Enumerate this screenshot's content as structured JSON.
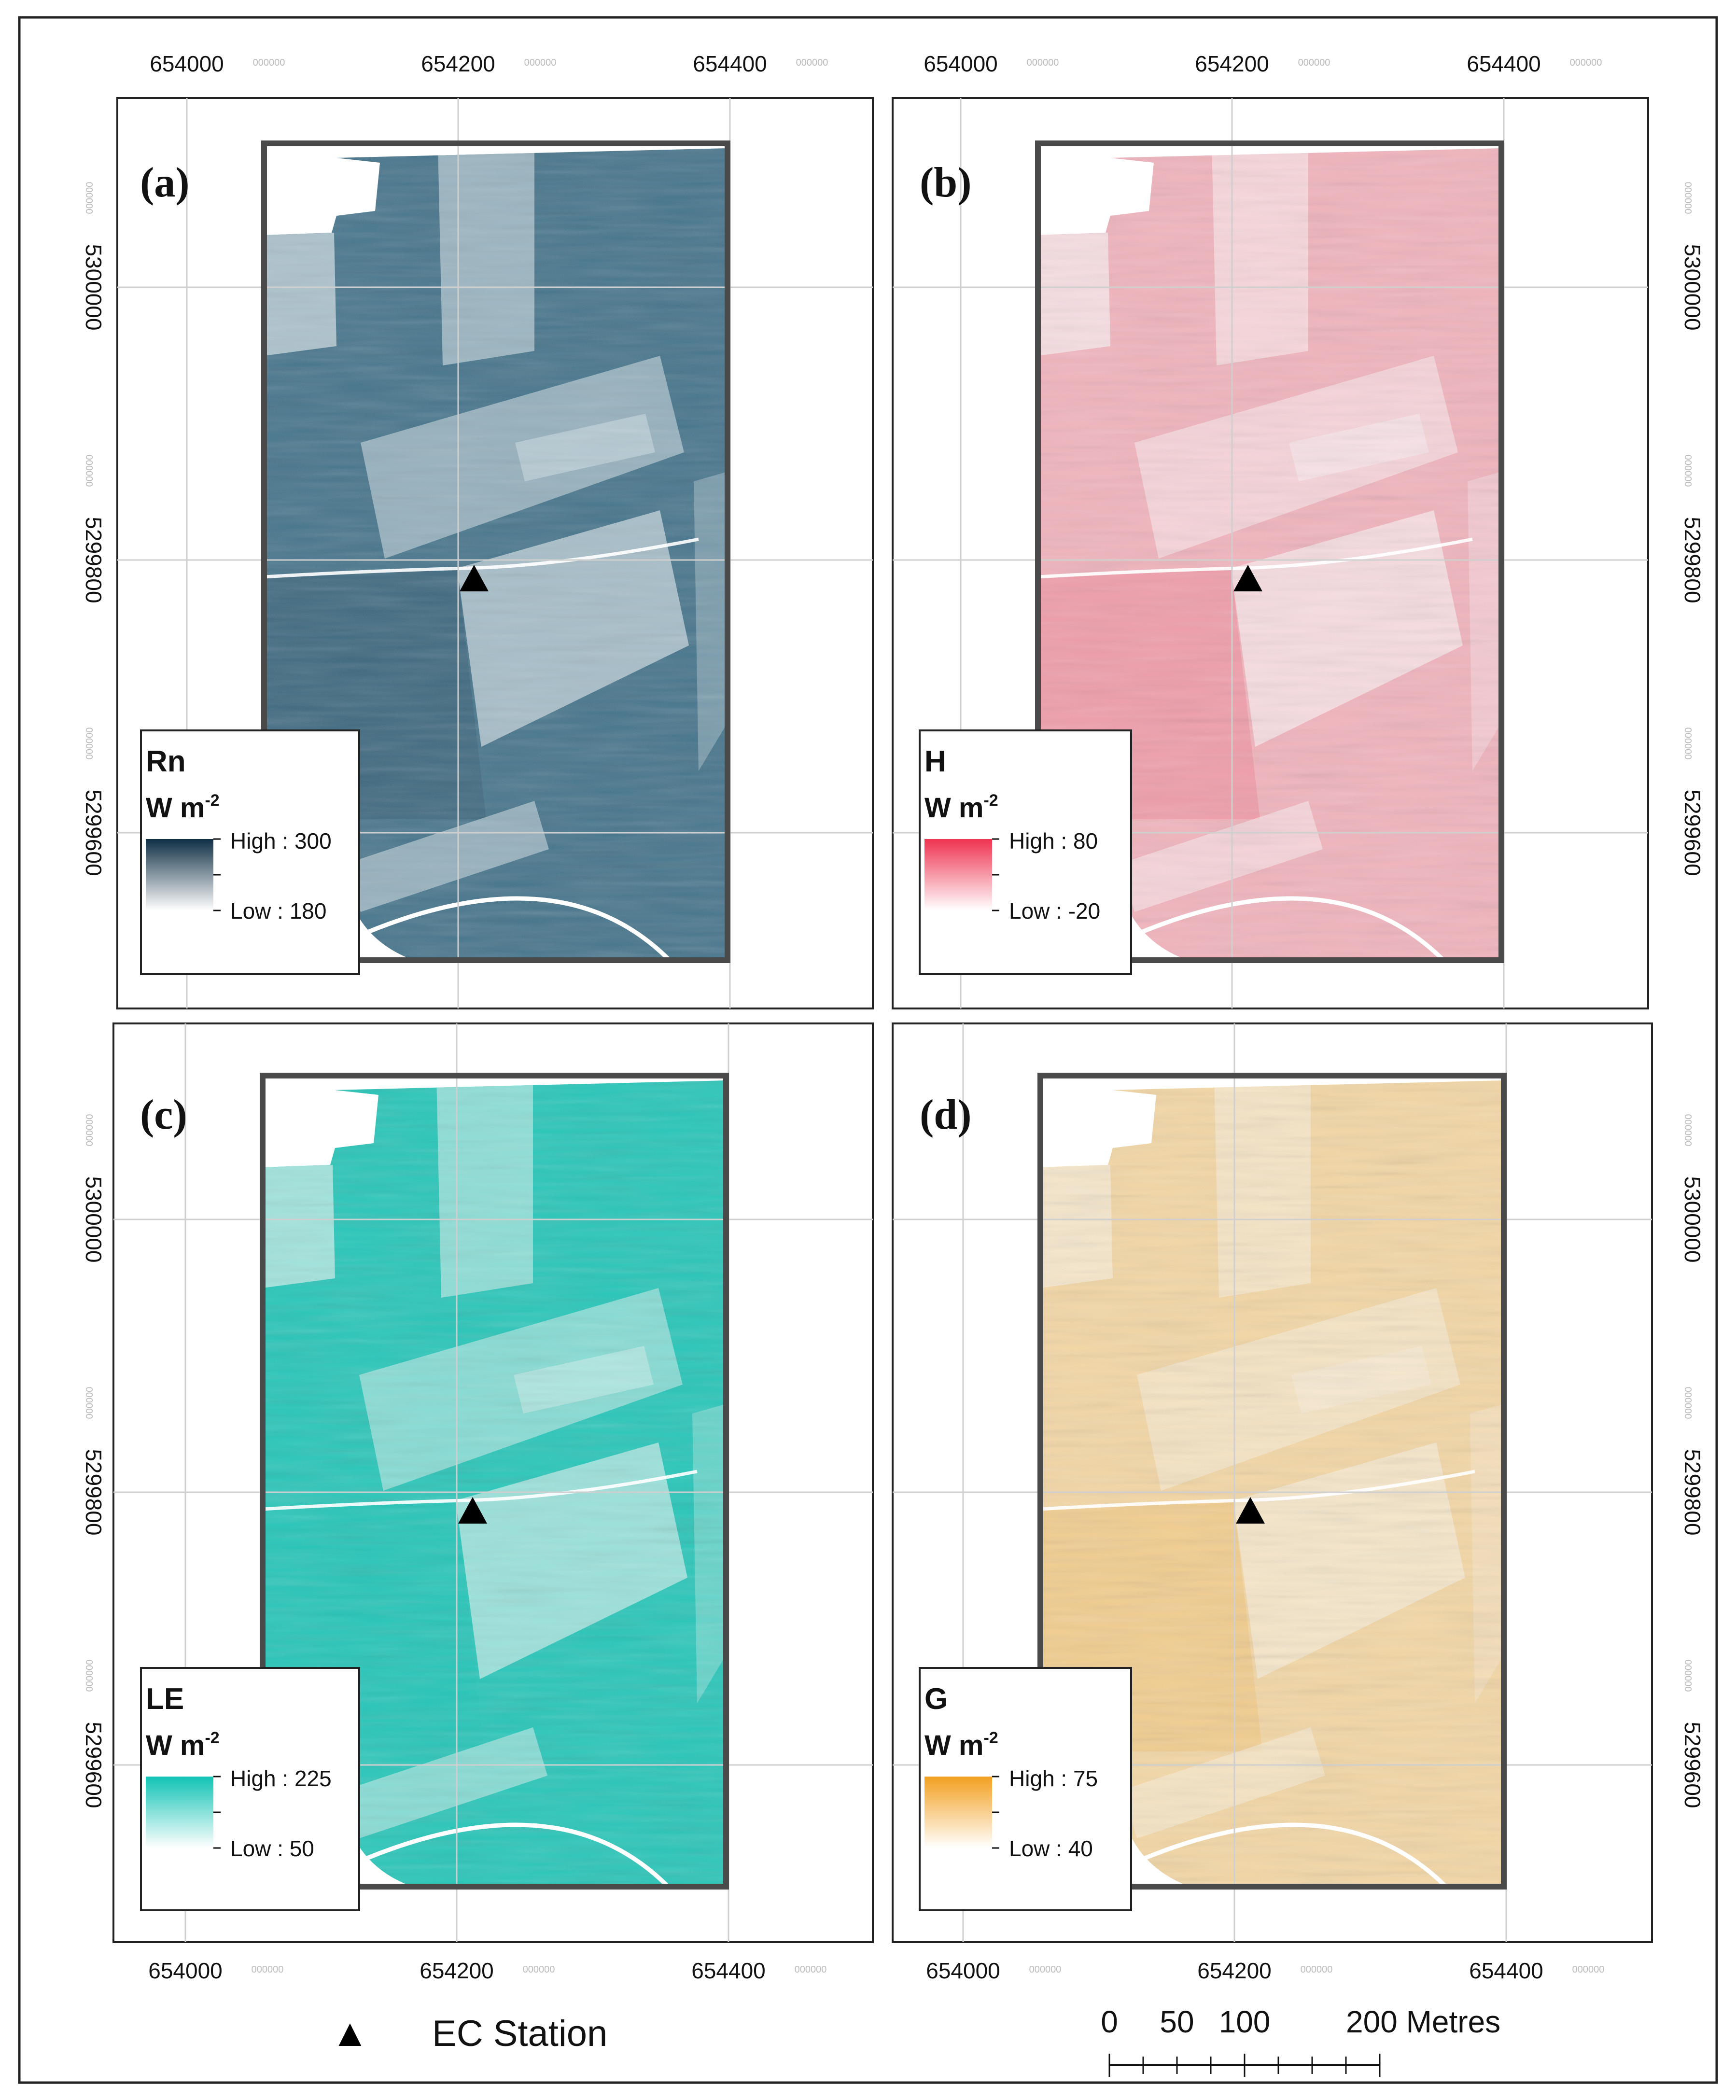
{
  "figure": {
    "panels": [
      {
        "id": "a",
        "label": "(a)",
        "variable": "Rn",
        "unit": "W m",
        "unit_sup": "-2",
        "high_label": "High : 300",
        "low_label": "Low : 180",
        "high_value": 300,
        "low_value": 180,
        "color_high": "#0f2f45",
        "color_base": "#3d6f88",
        "color_light": "#b7ccd6",
        "color_low": "#ffffff"
      },
      {
        "id": "b",
        "label": "(b)",
        "variable": "H",
        "unit": "W m",
        "unit_sup": "-2",
        "high_label": "High : 80",
        "low_label": "Low : -20",
        "high_value": 80,
        "low_value": -20,
        "color_high": "#ee3350",
        "color_base": "#f6b3bd",
        "color_light": "#fde6ea",
        "color_low": "#ffffff"
      },
      {
        "id": "c",
        "label": "(c)",
        "variable": "LE",
        "unit": "W m",
        "unit_sup": "-2",
        "high_label": "High : 225",
        "low_label": "Low : 50",
        "high_value": 225,
        "low_value": 50,
        "color_high": "#11c3b5",
        "color_base": "#1cc7b9",
        "color_light": "#aeeae4",
        "color_low": "#ffffff"
      },
      {
        "id": "d",
        "label": "(d)",
        "variable": "G",
        "unit": "W m",
        "unit_sup": "-2",
        "high_label": "High : 75",
        "low_label": "Low : 40",
        "high_value": 75,
        "low_value": 40,
        "color_high": "#f2a020",
        "color_base": "#f8d9a3",
        "color_light": "#fcecd2",
        "color_low": "#ffffff"
      }
    ],
    "easting_ticks": [
      {
        "main": "654000",
        "sub": "000000"
      },
      {
        "main": "654200",
        "sub": "000000"
      },
      {
        "main": "654400",
        "sub": "000000"
      }
    ],
    "northing_ticks": [
      {
        "main": "5300000",
        "sub": "000000"
      },
      {
        "main": "5299800",
        "sub": "000000"
      },
      {
        "main": "5299600",
        "sub": "000000"
      }
    ],
    "legend_station": {
      "symbol": "▲",
      "label": "EC Station"
    },
    "scale_bar": {
      "labels": [
        "0",
        "50",
        "100",
        "200 Metres"
      ],
      "values_m": [
        0,
        50,
        100,
        200
      ]
    }
  }
}
